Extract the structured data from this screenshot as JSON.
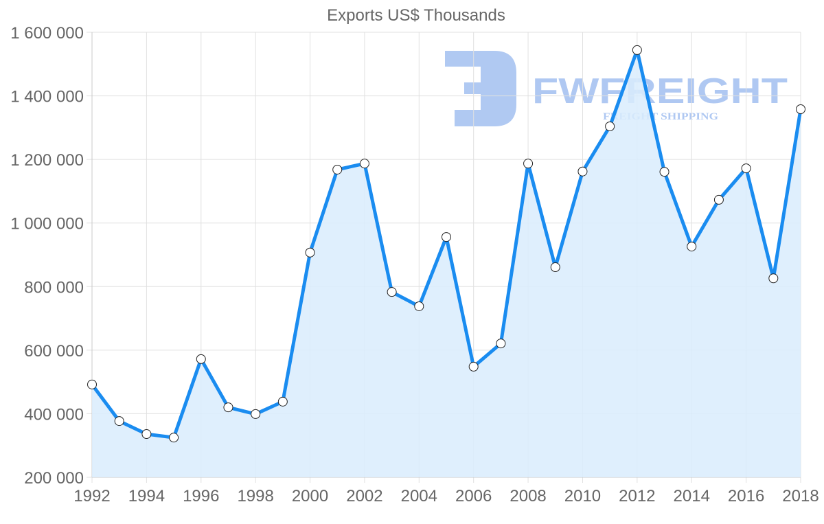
{
  "chart_data": {
    "type": "line",
    "title": "Exports US$ Thousands",
    "xlabel": "",
    "ylabel": "",
    "x": [
      1992,
      1993,
      1994,
      1995,
      1996,
      1997,
      1998,
      1999,
      2000,
      2001,
      2002,
      2003,
      2004,
      2005,
      2006,
      2007,
      2008,
      2009,
      2010,
      2011,
      2012,
      2013,
      2014,
      2015,
      2016,
      2017,
      2018
    ],
    "series": [
      {
        "name": "Exports US$ Thousands",
        "values": [
          492000,
          377000,
          336000,
          325000,
          572000,
          420000,
          399000,
          438000,
          907000,
          1168000,
          1187000,
          783000,
          738000,
          956000,
          548000,
          621000,
          1187000,
          861000,
          1162000,
          1304000,
          1544000,
          1161000,
          926000,
          1073000,
          1172000,
          826000,
          1358000
        ],
        "color": "#1a8cf0",
        "fill": "#d9ecfd",
        "filled": true,
        "markers": true
      }
    ],
    "xlim": [
      1992,
      2018
    ],
    "ylim": [
      200000,
      1600000
    ],
    "x_ticks": [
      "1992",
      "1994",
      "1996",
      "1998",
      "2000",
      "2002",
      "2004",
      "2006",
      "2008",
      "2010",
      "2012",
      "2014",
      "2016",
      "2018"
    ],
    "y_ticks": [
      "200 000",
      "400 000",
      "600 000",
      "800 000",
      "1 000 000",
      "1 200 000",
      "1 400 000",
      "1 600 000"
    ],
    "grid": true,
    "legend": null
  },
  "watermark": {
    "brand": "FWFREIGHT",
    "tagline": "FREIGHT SHIPPING",
    "color": "#6f9ce8"
  },
  "colors": {
    "line": "#1a8cf0",
    "area": "#d9ecfd",
    "grid": "#e0e0e0",
    "axis_text": "#666666"
  }
}
